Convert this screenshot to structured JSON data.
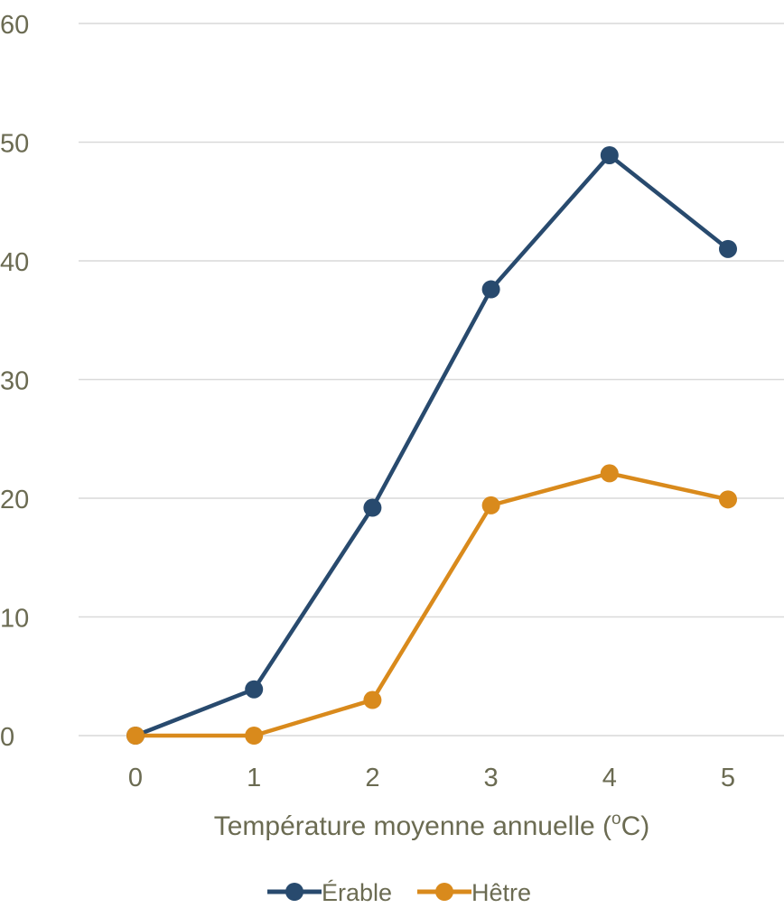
{
  "chart_data": {
    "type": "line",
    "x": [
      0,
      1,
      2,
      3,
      4,
      5
    ],
    "xticks": [
      "0",
      "1",
      "2",
      "3",
      "4",
      "5"
    ],
    "xlabel": "Température moyenne annuelle (",
    "xlabel_sup": "o",
    "xlabel_end": "C)",
    "ylabel": "",
    "ylim": [
      0,
      60
    ],
    "yticks": [
      "0",
      "10",
      "20",
      "30",
      "40",
      "50",
      "60"
    ],
    "grid": true,
    "legend_position": "bottom",
    "series": [
      {
        "name": "Érable",
        "color": "#284a6e",
        "values": [
          0,
          3.9,
          19.2,
          37.6,
          48.9,
          41.0
        ]
      },
      {
        "name": "Hêtre",
        "color": "#d98a1c",
        "values": [
          0,
          0,
          3.0,
          19.4,
          22.1,
          19.9
        ]
      }
    ]
  }
}
